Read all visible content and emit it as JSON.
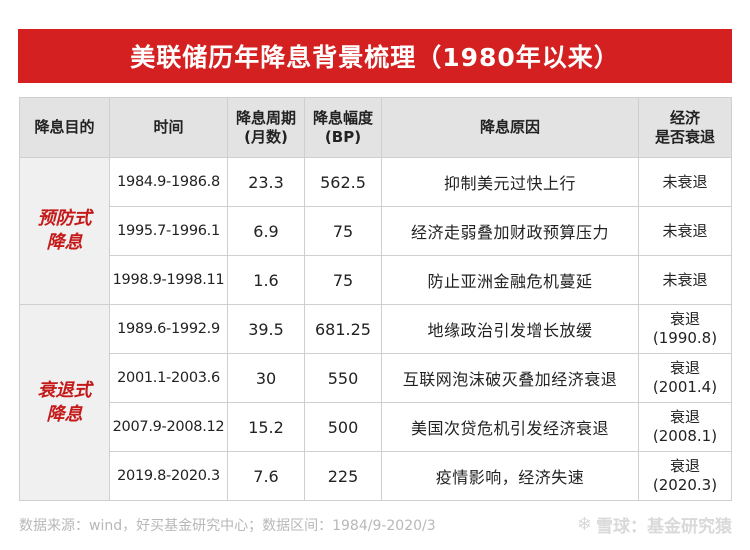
{
  "title": "美联储历年降息背景梳理（1980年以来）",
  "headers": {
    "purpose": "降息目的",
    "time": "时间",
    "period_line1": "降息周期",
    "period_line2": "(月数)",
    "magnitude_line1": "降息幅度",
    "magnitude_line2": "(BP)",
    "reason": "降息原因",
    "recession_line1": "经济",
    "recession_line2": "是否衰退"
  },
  "groups": {
    "preventive_line1": "预防式",
    "preventive_line2": "降息",
    "recession_line1": "衰退式",
    "recession_line2": "降息"
  },
  "rows": [
    {
      "time": "1984.9-1986.8",
      "months": "23.3",
      "bp": "562.5",
      "reason": "抑制美元过快上行",
      "rec1": "未衰退",
      "rec2": ""
    },
    {
      "time": "1995.7-1996.1",
      "months": "6.9",
      "bp": "75",
      "reason": "经济走弱叠加财政预算压力",
      "rec1": "未衰退",
      "rec2": ""
    },
    {
      "time": "1998.9-1998.11",
      "months": "1.6",
      "bp": "75",
      "reason": "防止亚洲金融危机蔓延",
      "rec1": "未衰退",
      "rec2": ""
    },
    {
      "time": "1989.6-1992.9",
      "months": "39.5",
      "bp": "681.25",
      "reason": "地缘政治引发增长放缓",
      "rec1": "衰退",
      "rec2": "(1990.8)"
    },
    {
      "time": "2001.1-2003.6",
      "months": "30",
      "bp": "550",
      "reason": "互联网泡沫破灭叠加经济衰退",
      "rec1": "衰退",
      "rec2": "(2001.4)"
    },
    {
      "time": "2007.9-2008.12",
      "months": "15.2",
      "bp": "500",
      "reason": "美国次贷危机引发经济衰退",
      "rec1": "衰退",
      "rec2": "(2008.1)"
    },
    {
      "time": "2019.8-2020.3",
      "months": "7.6",
      "bp": "225",
      "reason": "疫情影响，经济失速",
      "rec1": "衰退",
      "rec2": "(2020.3)"
    }
  ],
  "footer": "数据来源：wind，好买基金研究中心；数据区间：1984/9-2020/3",
  "watermark": "雪球：基金研究猿",
  "colors": {
    "accent_red": "#d42020",
    "group_text": "#c51a1a",
    "header_bg": "#e3e3e3"
  }
}
